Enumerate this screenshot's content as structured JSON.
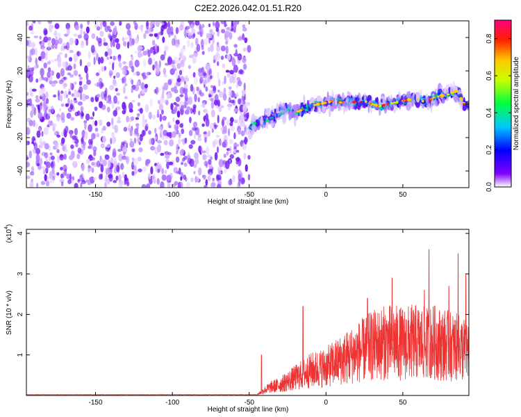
{
  "title": "C2E2.2026.042.01.51.R20",
  "colors": {
    "snr_line": "#ee3333",
    "axis": "#000000",
    "background": "#ffffff"
  },
  "chart_data": [
    {
      "type": "heatmap",
      "name": "spectrogram",
      "xlabel": "Height of straight line (km)",
      "ylabel": "Frequency (Hz)",
      "xlim": [
        -195,
        93
      ],
      "ylim": [
        -50,
        50
      ],
      "xticks": [
        -150,
        -100,
        -50,
        0,
        50
      ],
      "yticks": [
        -40,
        -20,
        0,
        20,
        40
      ],
      "signal_start_km": -50,
      "ridge": {
        "x": [
          -50,
          -45,
          -40,
          -35,
          -30,
          -25,
          -20,
          -15,
          -10,
          -5,
          0,
          5,
          10,
          15,
          20,
          25,
          30,
          35,
          40,
          45,
          50,
          55,
          60,
          65,
          70,
          75,
          80,
          85,
          90
        ],
        "y": [
          -14,
          -11,
          -9,
          -7,
          -5,
          -3,
          -5,
          -3,
          -1,
          0,
          1,
          2,
          1,
          2,
          1,
          2,
          0,
          -1,
          0,
          1,
          2,
          3,
          3,
          1,
          4,
          5,
          6,
          8,
          0
        ]
      },
      "colorbar": {
        "label": "Normalized spectral amplitude",
        "range": [
          0.0,
          0.9
        ],
        "ticks": [
          "0.0",
          "0.2",
          "0.4",
          "0.6",
          "0.8"
        ]
      }
    },
    {
      "type": "line",
      "name": "snr",
      "xlabel": "Height of straight line (km)",
      "ylabel": "SNR (10 * v/v)",
      "exponent_label": "(x10",
      "exponent_power": "4",
      "exponent_close": ")",
      "xlim": [
        -195,
        93
      ],
      "ylim": [
        0,
        4.1
      ],
      "xticks": [
        -150,
        -100,
        -50,
        0,
        50
      ],
      "yticks": [
        1,
        2,
        3,
        4
      ],
      "envelope": {
        "x": [
          -195,
          -45,
          -40,
          -35,
          -30,
          -25,
          -20,
          -15,
          -10,
          -5,
          0,
          5,
          10,
          15,
          20,
          25,
          30,
          35,
          40,
          45,
          50,
          55,
          60,
          65,
          70,
          75,
          80,
          85,
          90,
          93
        ],
        "y": [
          0.02,
          0.02,
          0.15,
          0.25,
          0.3,
          0.4,
          0.5,
          0.6,
          0.7,
          0.75,
          0.8,
          0.9,
          1.0,
          1.1,
          1.2,
          1.3,
          1.4,
          1.45,
          1.5,
          1.5,
          1.45,
          1.5,
          1.5,
          1.45,
          1.5,
          1.45,
          1.4,
          1.35,
          1.3,
          1.3
        ]
      },
      "peaks": [
        {
          "x": -42,
          "y": 1.0
        },
        {
          "x": -15,
          "y": 2.2
        },
        {
          "x": 27,
          "y": 2.4
        },
        {
          "x": 43,
          "y": 2.9
        },
        {
          "x": 64,
          "y": 2.6
        },
        {
          "x": 67,
          "y": 3.6
        },
        {
          "x": 80,
          "y": 2.7
        },
        {
          "x": 86,
          "y": 3.5
        },
        {
          "x": 91,
          "y": 3.0
        }
      ]
    }
  ]
}
